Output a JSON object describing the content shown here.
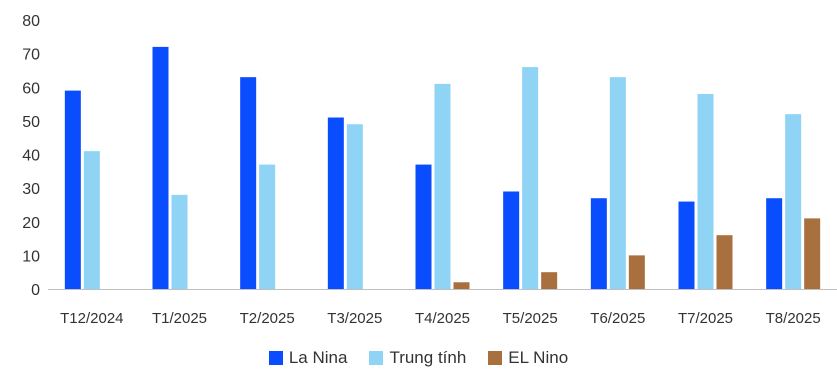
{
  "chart_data": {
    "type": "bar",
    "title": "",
    "xlabel": "",
    "ylabel": "",
    "ylim": [
      0,
      80
    ],
    "yticks": [
      0,
      10,
      20,
      30,
      40,
      50,
      60,
      70,
      80
    ],
    "grid": false,
    "legend_position": "bottom",
    "categories": [
      "T12/2024",
      "T1/2025",
      "T2/2025",
      "T3/2025",
      "T4/2025",
      "T5/2025",
      "T6/2025",
      "T7/2025",
      "T8/2025"
    ],
    "series": [
      {
        "name": "La Nina",
        "color": "#0a4dff",
        "values": [
          59,
          72,
          63,
          51,
          37,
          29,
          27,
          26,
          27
        ]
      },
      {
        "name": "Trung tính",
        "color": "#8fd3f5",
        "values": [
          41,
          28,
          37,
          49,
          61,
          66,
          63,
          58,
          52
        ]
      },
      {
        "name": "EL Nino",
        "color": "#a8703f",
        "values": [
          0,
          0,
          0,
          0,
          2,
          5,
          10,
          16,
          21
        ]
      }
    ]
  }
}
